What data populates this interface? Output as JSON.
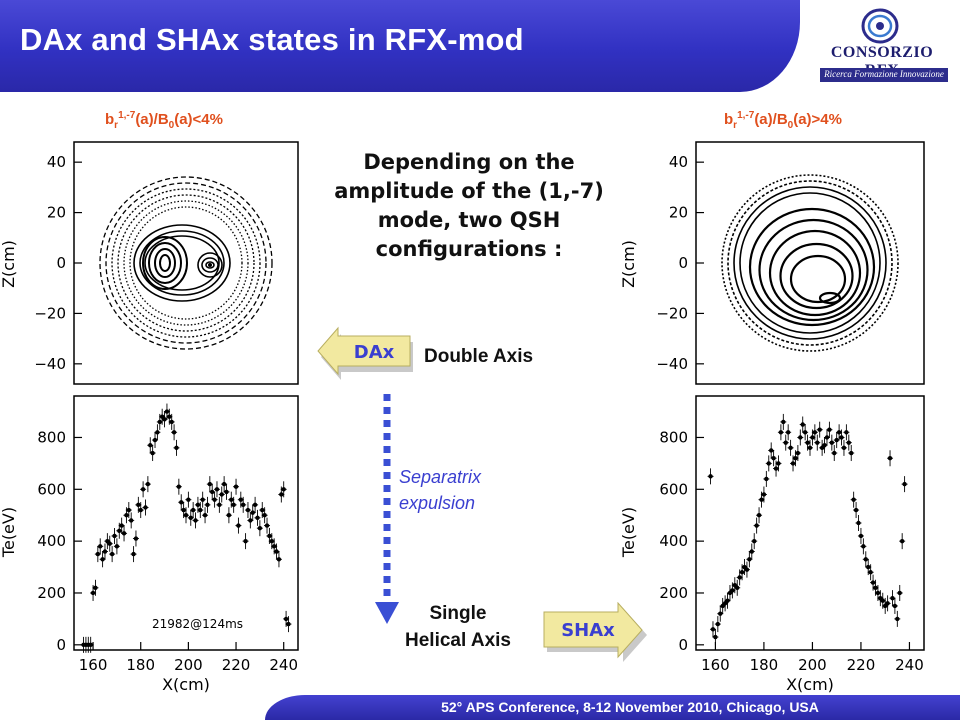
{
  "header": {
    "title": "DAx and SHAx states in RFX-mod"
  },
  "logo": {
    "name": "CONSORZIO RFX",
    "tagline": "Ricerca Formazione Innovazione"
  },
  "left_condition": {
    "base": "b",
    "sub": "r",
    "sup": "1,-7",
    "middle": "(a)/B",
    "sub2": "0",
    "tail": "(a)<4%"
  },
  "right_condition": {
    "base": "b",
    "sub": "r",
    "sup": "1,-7",
    "middle": "(a)/B",
    "sub2": "0",
    "tail": "(a)>4%"
  },
  "description": "Depending on the amplitude of the (1,-7) mode, two QSH configurations :",
  "dax": {
    "arrow_label": "DAx",
    "name": "Double Axis"
  },
  "transition": {
    "line1": "Separatrix",
    "line2": "expulsion"
  },
  "shax": {
    "arrow_label": "SHAx",
    "line1": "Single",
    "line2": "Helical Axis"
  },
  "footer": {
    "text": "52° APS Conference, 8-12 November 2010, Chicago, USA"
  },
  "colors": {
    "title_bar": "#3333c4",
    "accent_red": "#e0501e",
    "arrow_fill": "#f2e9a0",
    "arrow_text": "#3a3fd0",
    "dashed_arrow": "#3a4fd4"
  },
  "chart_data": [
    {
      "type": "contour",
      "panel": "left-top",
      "ylabel": "Z(cm)",
      "yticks": [
        "40",
        "20",
        "0",
        "−20",
        "−40"
      ],
      "ylim": [
        -48,
        48
      ]
    },
    {
      "type": "scatter",
      "panel": "left-bottom",
      "xlabel": "X(cm)",
      "ylabel": "Te(eV)",
      "xticks": [
        "160",
        "180",
        "200",
        "220",
        "240"
      ],
      "yticks": [
        "0",
        "200",
        "400",
        "600",
        "800"
      ],
      "xlim": [
        152,
        246
      ],
      "ylim": [
        -20,
        960
      ],
      "annotation": "21982@124ms",
      "x": [
        156,
        157,
        158,
        159,
        160,
        161,
        162,
        163,
        164,
        165,
        166,
        167,
        168,
        169,
        170,
        171,
        172,
        173,
        174,
        175,
        176,
        177,
        178,
        179,
        180,
        181,
        182,
        183,
        184,
        185,
        186,
        187,
        188,
        189,
        190,
        191,
        192,
        193,
        194,
        195,
        196,
        197,
        198,
        199,
        200,
        201,
        202,
        203,
        204,
        205,
        206,
        207,
        208,
        209,
        210,
        211,
        212,
        213,
        214,
        215,
        216,
        217,
        218,
        219,
        220,
        221,
        222,
        223,
        224,
        225,
        226,
        227,
        228,
        229,
        230,
        231,
        232,
        233,
        234,
        235,
        236,
        237,
        238,
        239,
        240,
        241,
        242
      ],
      "y": [
        0,
        0,
        0,
        0,
        200,
        220,
        350,
        380,
        330,
        360,
        400,
        390,
        350,
        420,
        380,
        440,
        460,
        430,
        500,
        520,
        480,
        350,
        410,
        540,
        520,
        600,
        530,
        620,
        770,
        740,
        790,
        820,
        860,
        880,
        870,
        900,
        880,
        860,
        820,
        760,
        610,
        550,
        520,
        500,
        560,
        490,
        520,
        480,
        540,
        520,
        560,
        500,
        540,
        620,
        590,
        560,
        600,
        540,
        580,
        620,
        590,
        500,
        560,
        540,
        610,
        460,
        560,
        540,
        400,
        520,
        480,
        510,
        540,
        490,
        450,
        520,
        500,
        460,
        420,
        400,
        380,
        360,
        330,
        580,
        600,
        100,
        80
      ]
    },
    {
      "type": "contour",
      "panel": "right-top",
      "ylabel": "Z(cm)",
      "yticks": [
        "40",
        "20",
        "0",
        "−20",
        "−40"
      ],
      "ylim": [
        -48,
        48
      ]
    },
    {
      "type": "scatter",
      "panel": "right-bottom",
      "xlabel": "X(cm)",
      "ylabel": "Te(eV)",
      "xticks": [
        "160",
        "180",
        "200",
        "220",
        "240"
      ],
      "yticks": [
        "0",
        "200",
        "400",
        "600",
        "800"
      ],
      "xlim": [
        152,
        246
      ],
      "ylim": [
        -20,
        960
      ],
      "x": [
        158,
        159,
        160,
        161,
        162,
        163,
        164,
        165,
        166,
        167,
        168,
        169,
        170,
        171,
        172,
        173,
        174,
        175,
        176,
        177,
        178,
        179,
        180,
        181,
        182,
        183,
        184,
        185,
        186,
        187,
        188,
        189,
        190,
        191,
        192,
        193,
        194,
        195,
        196,
        197,
        198,
        199,
        200,
        201,
        202,
        203,
        204,
        205,
        206,
        207,
        208,
        209,
        210,
        211,
        212,
        213,
        214,
        215,
        216,
        217,
        218,
        219,
        220,
        221,
        222,
        223,
        224,
        225,
        226,
        227,
        228,
        229,
        230,
        231,
        232,
        233,
        234,
        235,
        236,
        237,
        238
      ],
      "y": [
        650,
        60,
        30,
        80,
        120,
        150,
        160,
        170,
        200,
        210,
        230,
        220,
        260,
        280,
        300,
        290,
        330,
        360,
        400,
        460,
        500,
        560,
        580,
        640,
        700,
        750,
        720,
        680,
        700,
        820,
        860,
        780,
        820,
        760,
        700,
        720,
        740,
        800,
        850,
        820,
        780,
        760,
        800,
        820,
        780,
        830,
        760,
        770,
        800,
        830,
        780,
        740,
        790,
        820,
        800,
        760,
        820,
        780,
        740,
        560,
        520,
        470,
        420,
        380,
        330,
        300,
        280,
        240,
        220,
        200,
        180,
        170,
        150,
        160,
        720,
        180,
        150,
        100,
        200,
        400,
        620
      ]
    }
  ]
}
